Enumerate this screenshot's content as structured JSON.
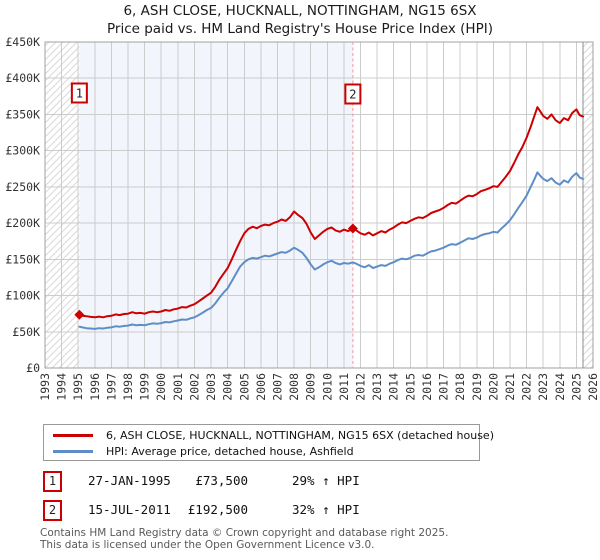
{
  "title": {
    "line1": "6, ASH CLOSE, HUCKNALL, NOTTINGHAM, NG15 6SX",
    "line2": "Price paid vs. HM Land Registry's House Price Index (HPI)"
  },
  "colors": {
    "price_line": "#cc0000",
    "hpi_line": "#5e8ec6",
    "dashed_marker_line": "#f19999",
    "shade": "#f2f5fc",
    "grid": "#cccccc",
    "hatch": "#d9d9d9",
    "marker_box_border": "#cc0000",
    "plot_border": "#a0a0a0",
    "data_end_line": "#8c8c8c"
  },
  "chart_data": {
    "type": "line",
    "title": "Price paid vs. HM Land Registry's House Price Index (HPI)",
    "xlabel": "year",
    "ylabel": "price",
    "y_unit": "GBP thousands",
    "xlim": [
      1993,
      2026
    ],
    "ylim": [
      0,
      450
    ],
    "grid": true,
    "x_ticks": [
      1993,
      1994,
      1995,
      1996,
      1997,
      1998,
      1999,
      2000,
      2001,
      2002,
      2003,
      2004,
      2005,
      2006,
      2007,
      2008,
      2009,
      2010,
      2011,
      2012,
      2013,
      2014,
      2015,
      2016,
      2017,
      2018,
      2019,
      2020,
      2021,
      2022,
      2023,
      2024,
      2025,
      2026
    ],
    "y_ticks": [
      {
        "v": 0,
        "label": "£0"
      },
      {
        "v": 50,
        "label": "£50K"
      },
      {
        "v": 100,
        "label": "£100K"
      },
      {
        "v": 150,
        "label": "£150K"
      },
      {
        "v": 200,
        "label": "£200K"
      },
      {
        "v": 250,
        "label": "£250K"
      },
      {
        "v": 300,
        "label": "£300K"
      },
      {
        "v": 350,
        "label": "£350K"
      },
      {
        "v": 400,
        "label": "£400K"
      },
      {
        "v": 450,
        "label": "£450K"
      }
    ],
    "shaded_region": {
      "from": 1995.07,
      "to": 2011.54
    },
    "hatched_regions": [
      {
        "from": 1993,
        "to": 1995.07
      },
      {
        "from": 2025.4,
        "to": 2026
      }
    ],
    "dashed_vline": 2011.54,
    "data_end_vline": 2025.4,
    "series": [
      {
        "name": "6, ASH CLOSE, HUCKNALL, NOTTINGHAM, NG15 6SX (detached house)",
        "color": "#cc0000",
        "points": [
          [
            1995.07,
            73.5
          ],
          [
            1995.25,
            72
          ],
          [
            1995.5,
            71.5
          ],
          [
            1995.75,
            70.5
          ],
          [
            1996,
            70
          ],
          [
            1996.25,
            71
          ],
          [
            1996.5,
            70
          ],
          [
            1996.75,
            71.5
          ],
          [
            1997,
            72
          ],
          [
            1997.25,
            74
          ],
          [
            1997.5,
            73
          ],
          [
            1997.75,
            74.5
          ],
          [
            1998,
            75
          ],
          [
            1998.25,
            77
          ],
          [
            1998.5,
            75.5
          ],
          [
            1998.75,
            76
          ],
          [
            1999,
            75
          ],
          [
            1999.25,
            77
          ],
          [
            1999.5,
            78
          ],
          [
            1999.75,
            77
          ],
          [
            2000,
            78
          ],
          [
            2000.25,
            80
          ],
          [
            2000.5,
            79
          ],
          [
            2000.75,
            81
          ],
          [
            2001,
            82
          ],
          [
            2001.25,
            84
          ],
          [
            2001.5,
            83.5
          ],
          [
            2001.75,
            86
          ],
          [
            2002,
            88
          ],
          [
            2002.25,
            92
          ],
          [
            2002.5,
            96
          ],
          [
            2002.75,
            100
          ],
          [
            2003,
            104
          ],
          [
            2003.25,
            112
          ],
          [
            2003.5,
            122
          ],
          [
            2003.75,
            130
          ],
          [
            2004,
            138
          ],
          [
            2004.25,
            150
          ],
          [
            2004.5,
            163
          ],
          [
            2004.75,
            175
          ],
          [
            2005,
            186
          ],
          [
            2005.25,
            192
          ],
          [
            2005.5,
            195
          ],
          [
            2005.75,
            193
          ],
          [
            2006,
            196
          ],
          [
            2006.25,
            198
          ],
          [
            2006.5,
            197
          ],
          [
            2006.75,
            200
          ],
          [
            2007,
            202
          ],
          [
            2007.25,
            205
          ],
          [
            2007.5,
            203
          ],
          [
            2007.75,
            208
          ],
          [
            2008,
            216
          ],
          [
            2008.25,
            211
          ],
          [
            2008.5,
            207
          ],
          [
            2008.75,
            199
          ],
          [
            2009,
            187
          ],
          [
            2009.25,
            178
          ],
          [
            2009.5,
            183
          ],
          [
            2009.75,
            188
          ],
          [
            2010,
            192
          ],
          [
            2010.25,
            194
          ],
          [
            2010.5,
            190
          ],
          [
            2010.75,
            188
          ],
          [
            2011,
            191
          ],
          [
            2011.25,
            189
          ],
          [
            2011.54,
            192.5
          ],
          [
            2011.75,
            190
          ],
          [
            2012,
            186
          ],
          [
            2012.25,
            184
          ],
          [
            2012.5,
            187
          ],
          [
            2012.75,
            183
          ],
          [
            2013,
            186
          ],
          [
            2013.25,
            189
          ],
          [
            2013.5,
            187
          ],
          [
            2013.75,
            191
          ],
          [
            2014,
            194
          ],
          [
            2014.25,
            198
          ],
          [
            2014.5,
            201
          ],
          [
            2014.75,
            200
          ],
          [
            2015,
            203
          ],
          [
            2015.25,
            206
          ],
          [
            2015.5,
            208
          ],
          [
            2015.75,
            207
          ],
          [
            2016,
            210
          ],
          [
            2016.25,
            214
          ],
          [
            2016.5,
            216
          ],
          [
            2016.75,
            218
          ],
          [
            2017,
            221
          ],
          [
            2017.25,
            225
          ],
          [
            2017.5,
            228
          ],
          [
            2017.75,
            227
          ],
          [
            2018,
            231
          ],
          [
            2018.25,
            235
          ],
          [
            2018.5,
            238
          ],
          [
            2018.75,
            237
          ],
          [
            2019,
            240
          ],
          [
            2019.25,
            244
          ],
          [
            2019.5,
            246
          ],
          [
            2019.75,
            248
          ],
          [
            2020,
            251
          ],
          [
            2020.25,
            250
          ],
          [
            2020.5,
            257
          ],
          [
            2020.75,
            264
          ],
          [
            2021,
            272
          ],
          [
            2021.25,
            283
          ],
          [
            2021.5,
            295
          ],
          [
            2021.75,
            305
          ],
          [
            2022,
            318
          ],
          [
            2022.25,
            333
          ],
          [
            2022.5,
            350
          ],
          [
            2022.65,
            360
          ],
          [
            2022.8,
            355
          ],
          [
            2023,
            348
          ],
          [
            2023.25,
            344
          ],
          [
            2023.5,
            350
          ],
          [
            2023.75,
            342
          ],
          [
            2024,
            338
          ],
          [
            2024.25,
            345
          ],
          [
            2024.5,
            342
          ],
          [
            2024.75,
            352
          ],
          [
            2025,
            357
          ],
          [
            2025.2,
            349
          ],
          [
            2025.4,
            347
          ]
        ]
      },
      {
        "name": "HPI: Average price, detached house, Ashfield",
        "color": "#5e8ec6",
        "points": [
          [
            1995.07,
            57
          ],
          [
            1995.25,
            56
          ],
          [
            1995.5,
            55
          ],
          [
            1995.75,
            54.5
          ],
          [
            1996,
            54
          ],
          [
            1996.25,
            55
          ],
          [
            1996.5,
            54.5
          ],
          [
            1996.75,
            55.5
          ],
          [
            1997,
            56
          ],
          [
            1997.25,
            57.5
          ],
          [
            1997.5,
            57
          ],
          [
            1997.75,
            58
          ],
          [
            1998,
            58.5
          ],
          [
            1998.25,
            60
          ],
          [
            1998.5,
            59
          ],
          [
            1998.75,
            59.5
          ],
          [
            1999,
            59
          ],
          [
            1999.25,
            60.5
          ],
          [
            1999.5,
            61.5
          ],
          [
            1999.75,
            61
          ],
          [
            2000,
            62
          ],
          [
            2000.25,
            63.5
          ],
          [
            2000.5,
            63
          ],
          [
            2000.75,
            64.5
          ],
          [
            2001,
            65.5
          ],
          [
            2001.25,
            67
          ],
          [
            2001.5,
            66.5
          ],
          [
            2001.75,
            68.5
          ],
          [
            2002,
            70
          ],
          [
            2002.25,
            73
          ],
          [
            2002.5,
            76.5
          ],
          [
            2002.75,
            80
          ],
          [
            2003,
            83
          ],
          [
            2003.25,
            89
          ],
          [
            2003.5,
            97
          ],
          [
            2003.75,
            104
          ],
          [
            2004,
            110
          ],
          [
            2004.25,
            120
          ],
          [
            2004.5,
            130
          ],
          [
            2004.75,
            140
          ],
          [
            2005,
            146
          ],
          [
            2005.25,
            150
          ],
          [
            2005.5,
            152
          ],
          [
            2005.75,
            151
          ],
          [
            2006,
            153
          ],
          [
            2006.25,
            155
          ],
          [
            2006.5,
            154
          ],
          [
            2006.75,
            156
          ],
          [
            2007,
            158
          ],
          [
            2007.25,
            160
          ],
          [
            2007.5,
            159
          ],
          [
            2007.75,
            162
          ],
          [
            2008,
            166
          ],
          [
            2008.25,
            163
          ],
          [
            2008.5,
            159
          ],
          [
            2008.75,
            152
          ],
          [
            2009,
            143
          ],
          [
            2009.25,
            136
          ],
          [
            2009.5,
            139
          ],
          [
            2009.75,
            143
          ],
          [
            2010,
            146
          ],
          [
            2010.25,
            148
          ],
          [
            2010.5,
            145
          ],
          [
            2010.75,
            143
          ],
          [
            2011,
            145
          ],
          [
            2011.25,
            144
          ],
          [
            2011.54,
            145.8
          ],
          [
            2011.75,
            144
          ],
          [
            2012,
            141
          ],
          [
            2012.25,
            139
          ],
          [
            2012.5,
            142
          ],
          [
            2012.75,
            138
          ],
          [
            2013,
            140
          ],
          [
            2013.25,
            142
          ],
          [
            2013.5,
            141
          ],
          [
            2013.75,
            144
          ],
          [
            2014,
            146
          ],
          [
            2014.25,
            149
          ],
          [
            2014.5,
            151
          ],
          [
            2014.75,
            150
          ],
          [
            2015,
            152
          ],
          [
            2015.25,
            155
          ],
          [
            2015.5,
            156
          ],
          [
            2015.75,
            155
          ],
          [
            2016,
            158
          ],
          [
            2016.25,
            161
          ],
          [
            2016.5,
            162
          ],
          [
            2016.75,
            164
          ],
          [
            2017,
            166
          ],
          [
            2017.25,
            169
          ],
          [
            2017.5,
            171
          ],
          [
            2017.75,
            170
          ],
          [
            2018,
            173
          ],
          [
            2018.25,
            176
          ],
          [
            2018.5,
            179
          ],
          [
            2018.75,
            178
          ],
          [
            2019,
            180
          ],
          [
            2019.25,
            183
          ],
          [
            2019.5,
            185
          ],
          [
            2019.75,
            186
          ],
          [
            2020,
            188
          ],
          [
            2020.25,
            187
          ],
          [
            2020.5,
            193
          ],
          [
            2020.75,
            198
          ],
          [
            2021,
            204
          ],
          [
            2021.25,
            212
          ],
          [
            2021.5,
            221
          ],
          [
            2021.75,
            229
          ],
          [
            2022,
            238
          ],
          [
            2022.25,
            250
          ],
          [
            2022.5,
            262
          ],
          [
            2022.65,
            270
          ],
          [
            2022.8,
            266
          ],
          [
            2023,
            261
          ],
          [
            2023.25,
            258
          ],
          [
            2023.5,
            262
          ],
          [
            2023.75,
            256
          ],
          [
            2024,
            253
          ],
          [
            2024.25,
            259
          ],
          [
            2024.5,
            256
          ],
          [
            2024.75,
            264
          ],
          [
            2025,
            269
          ],
          [
            2025.2,
            263
          ],
          [
            2025.4,
            261
          ]
        ]
      }
    ],
    "sale_markers": [
      {
        "label": "1",
        "x": 1995.07,
        "y": 73.5,
        "box_y": 93
      },
      {
        "label": "2",
        "x": 2011.54,
        "y": 192.5,
        "box_y": 94
      }
    ],
    "legend_position": "bottom"
  },
  "legend": {
    "items": [
      {
        "label": "6, ASH CLOSE, HUCKNALL, NOTTINGHAM, NG15 6SX (detached house)",
        "color": "#cc0000"
      },
      {
        "label": "HPI: Average price, detached house, Ashfield",
        "color": "#5e8ec6"
      }
    ]
  },
  "transactions": [
    {
      "num": "1",
      "date": "27-JAN-1995",
      "price": "£73,500",
      "hpi_change": "29% ↑ HPI"
    },
    {
      "num": "2",
      "date": "15-JUL-2011",
      "price": "£192,500",
      "hpi_change": "32% ↑ HPI"
    }
  ],
  "footer": {
    "line1": "Contains HM Land Registry data © Crown copyright and database right 2025.",
    "line2": "This data is licensed under the Open Government Licence v3.0."
  }
}
